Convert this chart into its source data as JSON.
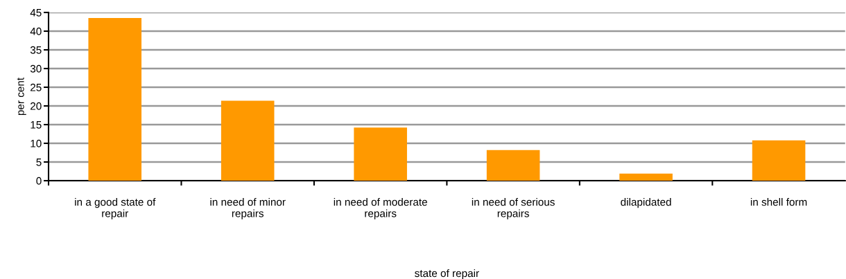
{
  "chart_data": {
    "type": "bar",
    "xlabel": "state of repair",
    "ylabel": "per cent",
    "categories": [
      "in a good state of\nrepair",
      "in need of minor\nrepairs",
      "in need of moderate\nrepairs",
      "in need of serious\nrepairs",
      "dilapidated",
      "in shell form"
    ],
    "values": [
      43.5,
      21.4,
      14.2,
      8.2,
      1.9,
      10.8
    ],
    "color": "#ff9900",
    "ylim": [
      0,
      45
    ],
    "yticks": [
      0,
      5,
      10,
      15,
      20,
      25,
      30,
      35,
      40,
      45
    ],
    "grid": "y",
    "legend": false
  }
}
